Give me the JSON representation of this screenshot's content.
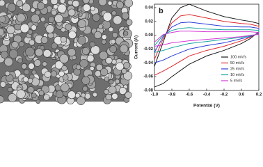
{
  "chart_data": {
    "type": "line",
    "panel_label": "b",
    "x_label": "Potential (V)",
    "y_label": "Current (A)",
    "x": [
      -1.0,
      -0.9,
      -0.8,
      -0.7,
      -0.6,
      -0.4,
      -0.2,
      0.0,
      0.1,
      0.2,
      0.2,
      0.1,
      0.0,
      -0.2,
      -0.4,
      -0.6,
      -0.8,
      -0.9,
      -1.0
    ],
    "series": [
      {
        "name": "100 mV/s",
        "color": "#1a1a1a",
        "values": [
          -0.045,
          -0.01,
          0.025,
          0.04,
          0.045,
          0.035,
          0.027,
          0.022,
          0.02,
          0.017,
          0.005,
          -0.005,
          -0.012,
          -0.022,
          -0.03,
          -0.042,
          -0.06,
          -0.07,
          -0.075
        ]
      },
      {
        "name": "50 mV/s",
        "color": "#e0282e",
        "values": [
          -0.035,
          -0.005,
          0.018,
          0.028,
          0.03,
          0.025,
          0.02,
          0.017,
          0.016,
          0.013,
          0.004,
          -0.003,
          -0.008,
          -0.016,
          -0.022,
          -0.03,
          -0.045,
          -0.052,
          -0.058
        ]
      },
      {
        "name": "25 mV/s",
        "color": "#2a3fd6",
        "values": [
          -0.025,
          -0.002,
          0.012,
          0.018,
          0.019,
          0.016,
          0.013,
          0.012,
          0.012,
          0.01,
          0.003,
          -0.002,
          -0.005,
          -0.011,
          -0.015,
          -0.02,
          -0.03,
          -0.036,
          -0.04
        ]
      },
      {
        "name": "10 mV/s",
        "color": "#1aa6a0",
        "values": [
          -0.015,
          0.0,
          0.007,
          0.01,
          0.011,
          0.009,
          0.008,
          0.008,
          0.008,
          0.007,
          0.002,
          -0.001,
          -0.003,
          -0.006,
          -0.009,
          -0.012,
          -0.018,
          -0.022,
          -0.025
        ]
      },
      {
        "name": "5 mV/s",
        "color": "#d63ad6",
        "values": [
          -0.01,
          0.001,
          0.004,
          0.006,
          0.006,
          0.005,
          0.005,
          0.005,
          0.005,
          0.004,
          0.001,
          0.0,
          -0.002,
          -0.004,
          -0.006,
          -0.008,
          -0.011,
          -0.014,
          -0.016
        ]
      }
    ],
    "xlim": [
      -1.0,
      0.2
    ],
    "xticks": [
      {
        "value": -1.0,
        "label": "-1.0"
      },
      -0.8,
      -0.6,
      -0.4,
      -0.2,
      {
        "value": 0.0,
        "label": "0.0"
      },
      0.2
    ],
    "ylim": [
      -0.08,
      0.045
    ],
    "yticks": [
      -0.08,
      -0.06,
      -0.04,
      -0.02,
      {
        "value": 0.0,
        "label": "0.00"
      },
      0.02,
      0.04
    ],
    "legend": "lower-right"
  }
}
